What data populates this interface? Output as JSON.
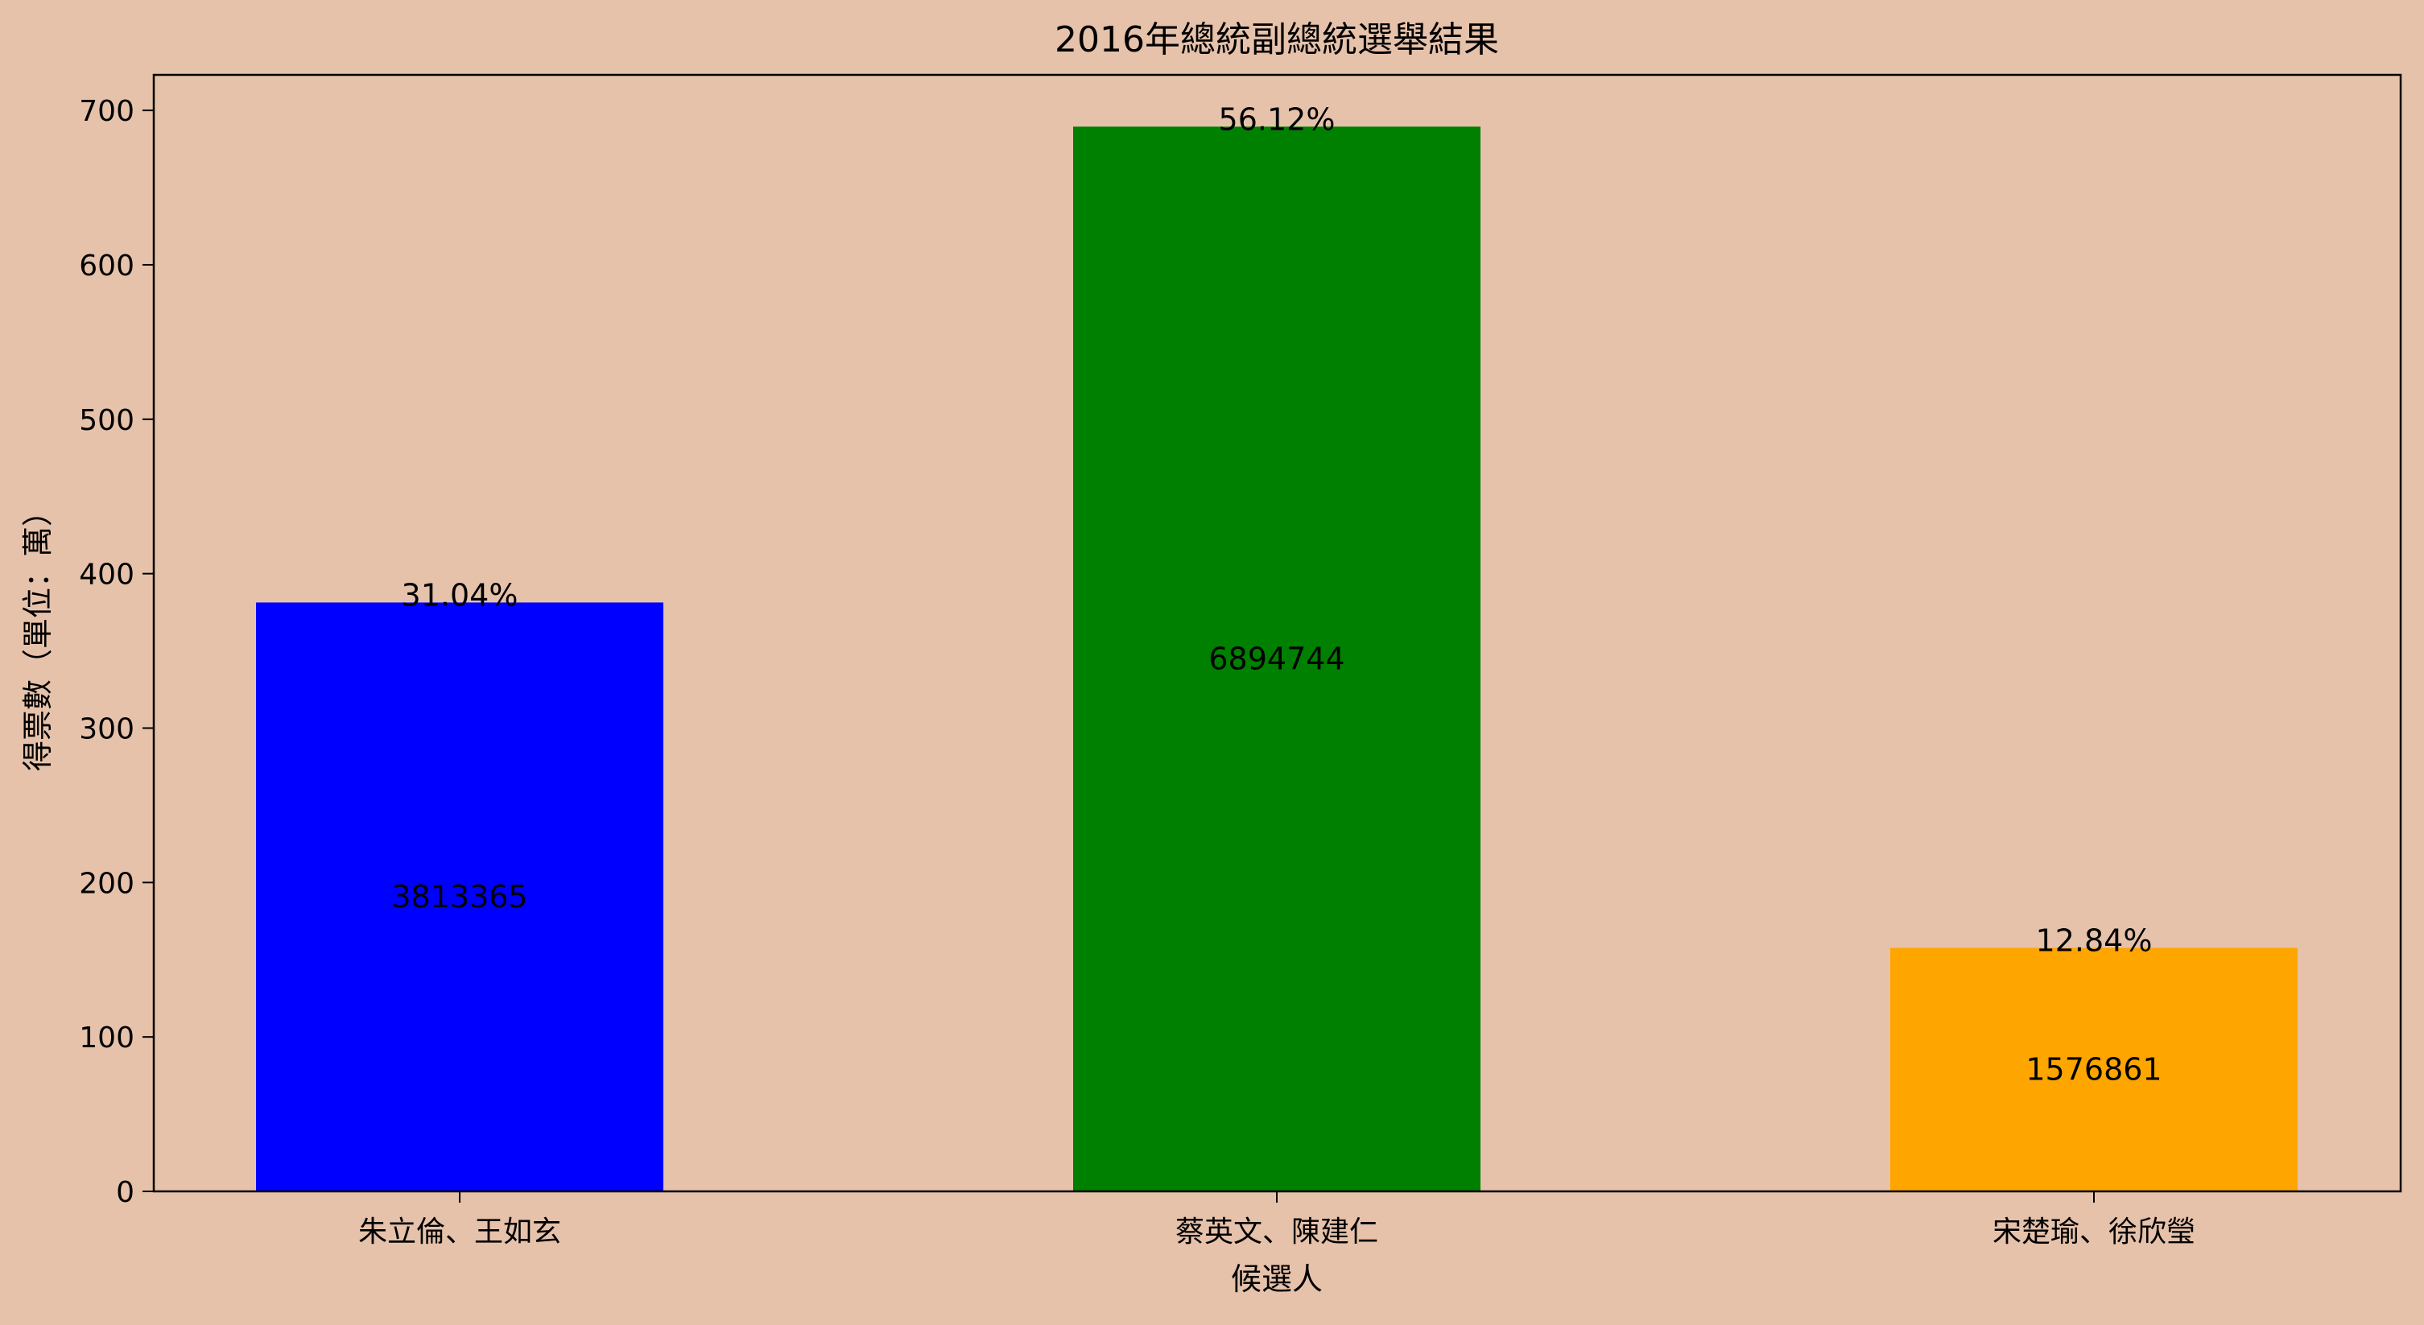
{
  "chart_data": {
    "type": "bar",
    "title": "2016年總統副總統選舉結果",
    "xlabel": "候選人",
    "ylabel": "得票數（單位：萬）",
    "categories": [
      "朱立倫、王如玄",
      "蔡英文、陳建仁",
      "宋楚瑜、徐欣瑩"
    ],
    "values": [
      381.3365,
      689.4744,
      157.6861
    ],
    "vote_labels": [
      "3813365",
      "6894744",
      "1576861"
    ],
    "percent_labels": [
      "31.04%",
      "56.12%",
      "12.84%"
    ],
    "colors": [
      "#0000ff",
      "#008000",
      "#ffa500"
    ],
    "ylim": [
      0,
      723
    ],
    "yticks": [
      0,
      100,
      200,
      300,
      400,
      500,
      600,
      700
    ],
    "grid": false,
    "legend": "none",
    "background": "#e6c2ab"
  }
}
